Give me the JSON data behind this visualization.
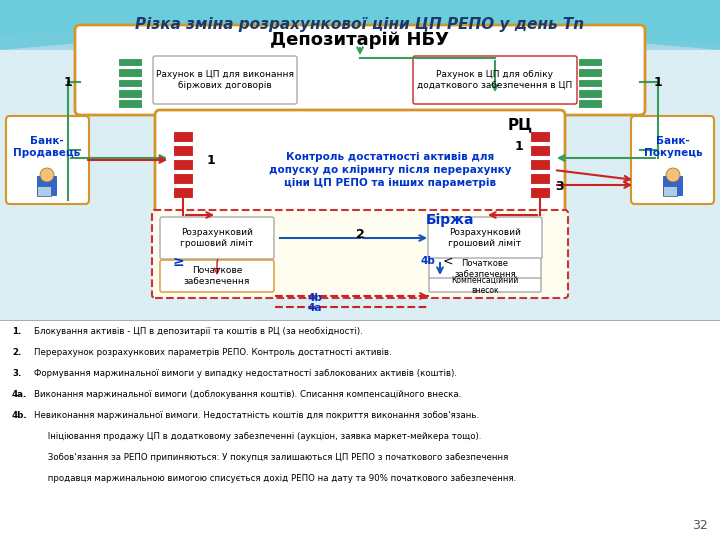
{
  "title": "Різка зміна розрахункової ціни ЦП РЕПО у день Tn",
  "depository_label": "Депозитарій НБУ",
  "account1_label": "Рахунок в ЦП для виконання\nбіржових договорів",
  "account2_label": "Рахунок в ЦП для обліку\nдодаткового забезпечення в ЦП",
  "rc_label": "РЦ",
  "rc_text": "Контроль достатності активів для\nдопуску до клірингу після перерахунку\nціни ЦП РЕПО та інших параметрів",
  "bank_seller": "Банк-\nПродавець",
  "bank_buyer": "Банк-\nПокупець",
  "rozr_lim": "Розрахунковий\nгрошовий ліміт",
  "birzha_label": "Біржа",
  "pochat_zab": "Початкове\nзабезпечення",
  "kompens": "Компенсаційний\nвнесок",
  "note1": "Блокування активів - ЦП в депозитарії та коштів в РЦ (за необхідності).",
  "note2": "Перерахунок розрахункових параметрів РЕПО. Контроль достатності активів.",
  "note3": "Формування маржинальної вимоги у випадку недостатності заблокованих активів (коштів).",
  "note4a": "Виконання маржинальної вимоги (доблокування коштів). Списання компенсаційного внеска.",
  "note4b1": "Невиконання маржинальної вимоги. Недостатність коштів для покриття виконання зобов'язань.",
  "note4b2": "Ініціювання продажу ЦП в додатковому забезпеченні (аукціон, заявка маркет-мейкера тощо).",
  "note4b3": "Зобов'язання за РЕПО припиняються: У покупця залишаються ЦП РЕПО з початкового забезпечення",
  "note4b4": "продавця маржинальною вимогою списується дохід РЕПО на дату та 90% початкового забезпечення.",
  "page_num": "32"
}
